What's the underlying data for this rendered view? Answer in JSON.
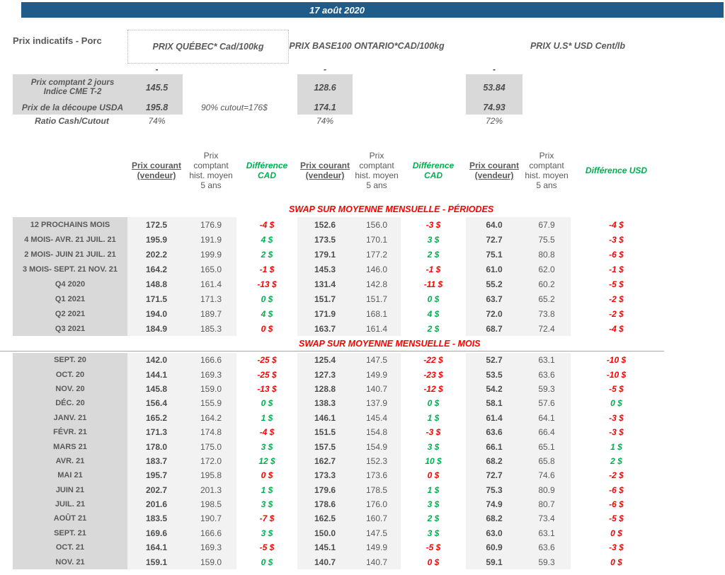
{
  "title_bar": {
    "date": "17 août 2020"
  },
  "page_label": "Prix indicatifs - Porc",
  "market_headers": {
    "quebec": "PRIX QUÉBEC* Cad/100kg",
    "ontario": "PRIX BASE100 ONTARIO*CAD/100kg",
    "us": "PRIX U.S* USD Cent/lb"
  },
  "spot_info": {
    "collapsed_marker": "-",
    "rows": [
      {
        "label_line1": "Prix comptant 2 jours",
        "label_line2": "Indice CME T-2",
        "quebec": "145.5",
        "ontario": "128.6",
        "us": "53.84"
      },
      {
        "label": "Prix de la découpe USDA",
        "note": "90% cutout=176$",
        "quebec": "195.8",
        "ontario": "174.1",
        "us": "74.93"
      },
      {
        "label": "Ratio Cash/Cutout",
        "quebec": "74%",
        "ontario": "74%",
        "us": "72%"
      }
    ]
  },
  "column_headers": {
    "current": "Prix courant (vendeur)",
    "hist": "Prix comptant hist. moyen 5 ans",
    "diff_cad": "Différence CAD",
    "diff_usd": "Différence USD"
  },
  "colors": {
    "header_bar": "#1f5c8a",
    "positive": "#00b050",
    "negative": "#fe0000",
    "label_bg": "#d9d9d9",
    "value_bg": "#f2f2f2"
  },
  "sections": [
    {
      "title": "SWAP SUR MOYENNE MENSUELLE - PÉRIODES",
      "rows": [
        {
          "label": "12 PROCHAINS MOIS",
          "qc": [
            "172.5",
            "176.9",
            "-4 $",
            "neg"
          ],
          "on": [
            "152.6",
            "156.0",
            "-3 $",
            "neg"
          ],
          "us": [
            "64.0",
            "67.9",
            "-4 $",
            "neg"
          ]
        },
        {
          "label": "4 MOIS- AVR. 21 JUIL. 21",
          "qc": [
            "195.9",
            "191.9",
            "4 $",
            "pos"
          ],
          "on": [
            "173.5",
            "170.1",
            "3 $",
            "pos"
          ],
          "us": [
            "72.7",
            "75.5",
            "-3 $",
            "neg"
          ]
        },
        {
          "label": "2 MOIS- JUIN 21 JUIL. 21",
          "qc": [
            "202.2",
            "199.9",
            "2 $",
            "pos"
          ],
          "on": [
            "179.1",
            "177.2",
            "2 $",
            "pos"
          ],
          "us": [
            "75.1",
            "80.8",
            "-6 $",
            "neg"
          ]
        },
        {
          "label": "3 MOIS- SEPT. 21 NOV. 21",
          "qc": [
            "164.2",
            "165.0",
            "-1 $",
            "neg"
          ],
          "on": [
            "145.3",
            "146.0",
            "-1 $",
            "neg"
          ],
          "us": [
            "61.0",
            "62.0",
            "-1 $",
            "neg"
          ]
        },
        {
          "label": "Q4 2020",
          "qc": [
            "148.8",
            "161.4",
            "-13 $",
            "neg"
          ],
          "on": [
            "131.4",
            "142.8",
            "-11 $",
            "neg"
          ],
          "us": [
            "55.2",
            "60.2",
            "-5 $",
            "neg"
          ]
        },
        {
          "label": "Q1 2021",
          "qc": [
            "171.5",
            "171.3",
            "0 $",
            "pos"
          ],
          "on": [
            "151.7",
            "151.7",
            "0 $",
            "pos"
          ],
          "us": [
            "63.7",
            "65.2",
            "-2 $",
            "neg"
          ]
        },
        {
          "label": "Q2 2021",
          "qc": [
            "194.0",
            "189.7",
            "4 $",
            "pos"
          ],
          "on": [
            "171.9",
            "168.1",
            "4 $",
            "pos"
          ],
          "us": [
            "72.0",
            "73.8",
            "-2 $",
            "neg"
          ]
        },
        {
          "label": "Q3 2021",
          "qc": [
            "184.9",
            "185.3",
            "0 $",
            "neg"
          ],
          "on": [
            "163.7",
            "161.4",
            "2 $",
            "pos"
          ],
          "us": [
            "68.7",
            "72.4",
            "-4 $",
            "neg"
          ]
        }
      ]
    },
    {
      "title": "SWAP SUR MOYENNE MENSUELLE - MOIS",
      "rows": [
        {
          "label": "SEPT. 20",
          "qc": [
            "142.0",
            "166.6",
            "-25 $",
            "neg"
          ],
          "on": [
            "125.4",
            "147.5",
            "-22 $",
            "neg"
          ],
          "us": [
            "52.7",
            "63.1",
            "-10 $",
            "neg"
          ]
        },
        {
          "label": "OCT. 20",
          "qc": [
            "144.1",
            "169.3",
            "-25 $",
            "neg"
          ],
          "on": [
            "127.3",
            "149.9",
            "-23 $",
            "neg"
          ],
          "us": [
            "53.5",
            "63.6",
            "-10 $",
            "neg"
          ]
        },
        {
          "label": "NOV. 20",
          "qc": [
            "145.8",
            "159.0",
            "-13 $",
            "neg"
          ],
          "on": [
            "128.8",
            "140.7",
            "-12 $",
            "neg"
          ],
          "us": [
            "54.2",
            "59.3",
            "-5 $",
            "neg"
          ]
        },
        {
          "label": "DÉC. 20",
          "qc": [
            "156.4",
            "155.9",
            "0 $",
            "pos"
          ],
          "on": [
            "138.3",
            "137.9",
            "0 $",
            "pos"
          ],
          "us": [
            "58.1",
            "57.6",
            "0 $",
            "pos"
          ]
        },
        {
          "label": "JANV. 21",
          "qc": [
            "165.2",
            "164.2",
            "1 $",
            "pos"
          ],
          "on": [
            "146.1",
            "145.4",
            "1 $",
            "pos"
          ],
          "us": [
            "61.4",
            "64.1",
            "-3 $",
            "neg"
          ]
        },
        {
          "label": "FÉVR. 21",
          "qc": [
            "171.3",
            "174.8",
            "-4 $",
            "neg"
          ],
          "on": [
            "151.5",
            "154.8",
            "-3 $",
            "neg"
          ],
          "us": [
            "63.6",
            "66.4",
            "-3 $",
            "neg"
          ]
        },
        {
          "label": "MARS 21",
          "qc": [
            "178.0",
            "175.0",
            "3 $",
            "pos"
          ],
          "on": [
            "157.5",
            "154.9",
            "3 $",
            "pos"
          ],
          "us": [
            "66.1",
            "65.1",
            "1 $",
            "pos"
          ]
        },
        {
          "label": "AVR. 21",
          "qc": [
            "183.7",
            "172.0",
            "12 $",
            "pos"
          ],
          "on": [
            "162.7",
            "152.3",
            "10 $",
            "pos"
          ],
          "us": [
            "68.2",
            "65.8",
            "2 $",
            "pos"
          ]
        },
        {
          "label": "MAI 21",
          "qc": [
            "195.7",
            "195.8",
            "0 $",
            "neg"
          ],
          "on": [
            "173.3",
            "173.6",
            "0 $",
            "neg"
          ],
          "us": [
            "72.7",
            "74.6",
            "-2 $",
            "neg"
          ]
        },
        {
          "label": "JUIN 21",
          "qc": [
            "202.7",
            "201.3",
            "1 $",
            "pos"
          ],
          "on": [
            "179.6",
            "178.5",
            "1 $",
            "pos"
          ],
          "us": [
            "75.3",
            "80.9",
            "-6 $",
            "neg"
          ]
        },
        {
          "label": "JUIL. 21",
          "qc": [
            "201.6",
            "198.5",
            "3 $",
            "pos"
          ],
          "on": [
            "178.6",
            "176.0",
            "3 $",
            "pos"
          ],
          "us": [
            "74.9",
            "80.7",
            "-6 $",
            "neg"
          ]
        },
        {
          "label": "AOÛT 21",
          "qc": [
            "183.5",
            "190.7",
            "-7 $",
            "neg"
          ],
          "on": [
            "162.5",
            "160.7",
            "2 $",
            "pos"
          ],
          "us": [
            "68.2",
            "73.4",
            "-5 $",
            "neg"
          ]
        },
        {
          "label": "SEPT. 21",
          "qc": [
            "169.6",
            "166.6",
            "3 $",
            "pos"
          ],
          "on": [
            "150.0",
            "147.5",
            "3 $",
            "pos"
          ],
          "us": [
            "63.0",
            "63.1",
            "0 $",
            "neg"
          ]
        },
        {
          "label": "OCT. 21",
          "qc": [
            "164.1",
            "169.3",
            "-5 $",
            "neg"
          ],
          "on": [
            "145.1",
            "149.9",
            "-5 $",
            "neg"
          ],
          "us": [
            "60.9",
            "63.6",
            "-3 $",
            "neg"
          ]
        },
        {
          "label": "NOV. 21",
          "qc": [
            "159.1",
            "159.0",
            "0 $",
            "pos"
          ],
          "on": [
            "140.7",
            "140.7",
            "0 $",
            "neg"
          ],
          "us": [
            "59.1",
            "59.3",
            "0 $",
            "neg"
          ]
        }
      ]
    }
  ]
}
